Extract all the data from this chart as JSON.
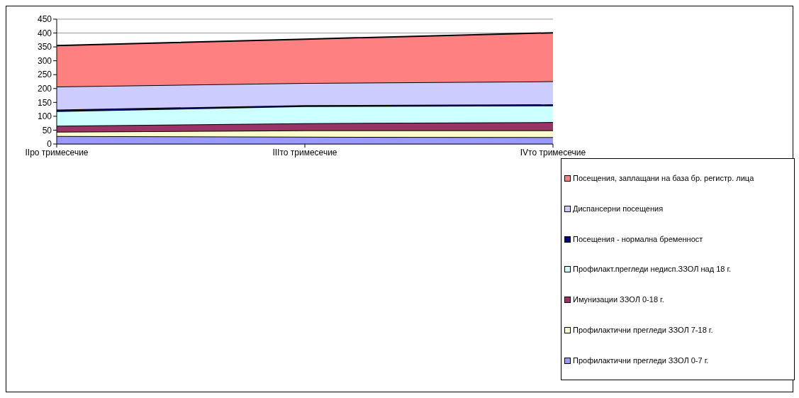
{
  "chart_data": {
    "type": "area",
    "stacked": true,
    "categories": [
      "IIро тримесечие",
      "IIIто тримесечие",
      "IVто тримесечие"
    ],
    "series": [
      {
        "name": "Профилактични прегледи ЗЗОЛ 0-7 г.",
        "color": "#9999ff",
        "values": [
          29,
          26,
          25
        ]
      },
      {
        "name": "Профилактични прегледи ЗЗОЛ 7-18 г.",
        "color": "#ffffcc",
        "values": [
          15,
          23,
          24
        ]
      },
      {
        "name": "Имунизации ЗЗОЛ 0-18 г.",
        "color": "#993366",
        "values": [
          22,
          26,
          30
        ]
      },
      {
        "name": "Профилакт.прегледи недисп.ЗЗОЛ над 18 г.",
        "color": "#ccffff",
        "values": [
          52,
          61,
          60
        ]
      },
      {
        "name": "Посещения - нормална бременност",
        "color": "#000080",
        "values": [
          6,
          4,
          4
        ]
      },
      {
        "name": "Диспансерни посещения",
        "color": "#ccccff",
        "values": [
          83,
          80,
          83
        ]
      },
      {
        "name": "Посещения, заплащани на база бр. регистр. лица",
        "color": "#ff8080",
        "values": [
          148,
          158,
          175
        ]
      }
    ],
    "ylim": [
      0,
      450
    ],
    "yticks": [
      0,
      50,
      100,
      150,
      200,
      250,
      300,
      350,
      400,
      450
    ],
    "grid": "y",
    "legend": "right"
  }
}
